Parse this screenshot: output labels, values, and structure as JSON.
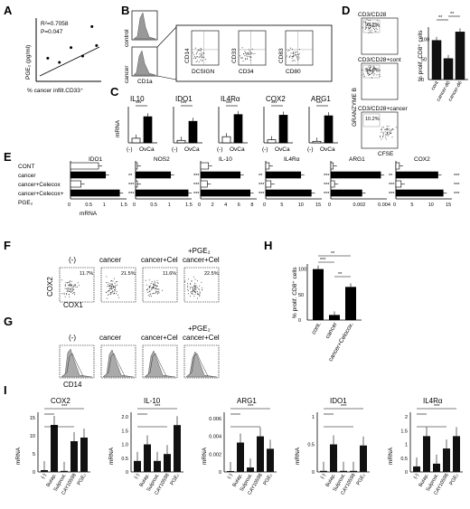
{
  "panels": {
    "A": "A",
    "B": "B",
    "C": "C",
    "D": "D",
    "E": "E",
    "F": "F",
    "G": "G",
    "H": "H",
    "I": "I"
  },
  "A": {
    "r2": "R²=0.7058",
    "p": "P=0.047",
    "ylabel": "PGE₂ (pg/ml)",
    "xlabel": "% cancer infilt.CD33⁺",
    "chart_data": {
      "type": "scatter",
      "x": [
        5,
        10,
        15,
        20,
        24,
        26
      ],
      "y": [
        1.1,
        0.9,
        1.6,
        1.2,
        2.6,
        1.7
      ]
    }
  },
  "B": {
    "side": [
      "control",
      "cancer"
    ],
    "xlabel": "CD1a",
    "pairs": [
      [
        "CD14",
        "DCSIGN"
      ],
      [
        "CD33",
        "CD34"
      ],
      [
        "CD83",
        "CD80"
      ]
    ]
  },
  "C": {
    "ylabel": "mRNA",
    "genes": [
      "IL10",
      "IDO1",
      "IL4Rα",
      "COX2",
      "ARG1"
    ],
    "xcats": [
      "(-)",
      "OvCa"
    ],
    "sig": "***",
    "chart_data": {
      "type": "bar",
      "categories": [
        "(-)",
        "OvCa"
      ],
      "series": [
        {
          "name": "IL10",
          "values": [
            0.15,
            0.85
          ]
        },
        {
          "name": "IDO1",
          "values": [
            0.08,
            0.7
          ]
        },
        {
          "name": "IL4Rα",
          "values": [
            0.2,
            0.92
          ]
        },
        {
          "name": "COX2",
          "values": [
            0.1,
            0.9
          ]
        },
        {
          "name": "ARG1",
          "values": [
            0.05,
            0.88
          ]
        }
      ]
    }
  },
  "D": {
    "flows": [
      {
        "label": "CD3/CD28",
        "pct": "95.2%"
      },
      {
        "label": "CD3/CD28+cont",
        "pct": "94.6%"
      },
      {
        "label": "CD3/CD28+cancer",
        "pct": "10.2%"
      }
    ],
    "ylabel": "GRANZYME B",
    "xlabel": "CFSE",
    "bar_ylabel": "% prolif. CD8⁺ cells",
    "sig": "**",
    "yticks": [
      "0",
      "50",
      "100"
    ],
    "chart_data": {
      "type": "bar",
      "categories": [
        "cont",
        "cancer-d0",
        "cancer-d6"
      ],
      "values": [
        97,
        52,
        118
      ],
      "ylim": [
        0,
        130
      ]
    }
  },
  "E": {
    "rows": [
      "CONT",
      "cancer",
      "cancer+Celecox",
      "cancer+Celecox+",
      "PGE₂"
    ],
    "xlabel": "mRNA",
    "sig2": "**",
    "sig3": "***",
    "genes": [
      {
        "name": "IDO1",
        "ticks": [
          "0",
          "0.5",
          "1",
          "1.5"
        ],
        "max": 1.6
      },
      {
        "name": "NOS2",
        "ticks": [
          "0",
          "0.5",
          "1",
          "1.5"
        ],
        "max": 1.6
      },
      {
        "name": "IL-10",
        "ticks": [
          "0",
          "2",
          "4",
          "6",
          "8"
        ],
        "max": 8.5
      },
      {
        "name": "IL4Rα",
        "ticks": [
          "0",
          "5",
          "10",
          "15"
        ],
        "max": 16
      },
      {
        "name": "ARG1",
        "ticks": [
          "0",
          "0.002",
          "0.004"
        ],
        "max": 0.0045
      },
      {
        "name": "COX2",
        "ticks": [
          "0",
          "5",
          "10",
          "15"
        ],
        "max": 16
      }
    ],
    "chart_data": {
      "type": "bar",
      "orientation": "horizontal",
      "categories": [
        "CONT",
        "cancer",
        "cancer+Celecox",
        "cancer+Celecox+PGE₂"
      ],
      "series": [
        {
          "name": "IDO1",
          "values": [
            0.8,
            1.0,
            0.3,
            1.4
          ]
        },
        {
          "name": "NOS2",
          "values": [
            0.05,
            1.0,
            0.05,
            1.5
          ]
        },
        {
          "name": "IL-10",
          "values": [
            1.2,
            6.0,
            1.0,
            7.5
          ]
        },
        {
          "name": "IL4Rα",
          "values": [
            1.0,
            10.0,
            1.5,
            13.0
          ]
        },
        {
          "name": "ARG1",
          "values": [
            0.0002,
            0.004,
            0.0003,
            0.0025
          ]
        },
        {
          "name": "COX2",
          "values": [
            1.0,
            12.0,
            1.5,
            13.5
          ]
        }
      ]
    }
  },
  "F": {
    "conds": [
      "(-)",
      "cancer",
      "cancer+Cel",
      "+PGE₂\ncancer+Cel"
    ],
    "cond4_top": "+PGE₂",
    "cond4_bottom": "cancer+Cel",
    "pcts": [
      "11.7%",
      "21.5%",
      "11.6%",
      "22.5%"
    ],
    "ylabel": "COX2",
    "xlabel": "COX1"
  },
  "G": {
    "conds": [
      "(-)",
      "cancer",
      "cancer+Cel"
    ],
    "cond4_top": "+PGE₂",
    "cond4_bottom": "cancer+Cel",
    "xlabel": "CD14"
  },
  "H": {
    "ylabel": "% prolif. CD8⁺ cells",
    "yticks": [
      "0",
      "50",
      "100"
    ],
    "sig3": "***",
    "sig2": "**",
    "chart_data": {
      "type": "bar",
      "categories": [
        "cont.",
        "cancer",
        "cancer+Celocox."
      ],
      "values": [
        100,
        10,
        65
      ],
      "ylim": [
        0,
        110
      ]
    }
  },
  "I": {
    "ylabel": "mRNA",
    "cats": [
      "(-)",
      "Butap.",
      "Sulprost.",
      "CAY10598",
      "PGE₂"
    ],
    "sig": "***",
    "genes": [
      {
        "name": "COX2",
        "ticks": [
          "0",
          "5",
          "10",
          "15"
        ],
        "max": 16,
        "values": [
          0.5,
          13,
          0.3,
          8.5,
          9.5
        ]
      },
      {
        "name": "IL-10",
        "ticks": [
          "0",
          "0.5",
          "1.0",
          "1.5",
          "2.0"
        ],
        "max": 2.1,
        "values": [
          0.4,
          1.0,
          0.4,
          0.65,
          1.7
        ]
      },
      {
        "name": "ARG1",
        "ticks": [
          "0",
          "0.002",
          "0.004",
          "0.006"
        ],
        "max": 0.0065,
        "values": [
          0.0001,
          0.0033,
          0.0005,
          0.004,
          0.0026
        ]
      },
      {
        "name": "IDO1",
        "ticks": [
          "0",
          "0.5",
          "1"
        ],
        "max": 1.05,
        "values": [
          0.02,
          0.5,
          0.02,
          0.02,
          0.48
        ]
      },
      {
        "name": "IL4Rα",
        "ticks": [
          "0",
          "0.5",
          "1",
          "1.5",
          "2"
        ],
        "max": 2.1,
        "values": [
          0.2,
          1.3,
          0.3,
          0.85,
          1.3
        ]
      }
    ]
  }
}
